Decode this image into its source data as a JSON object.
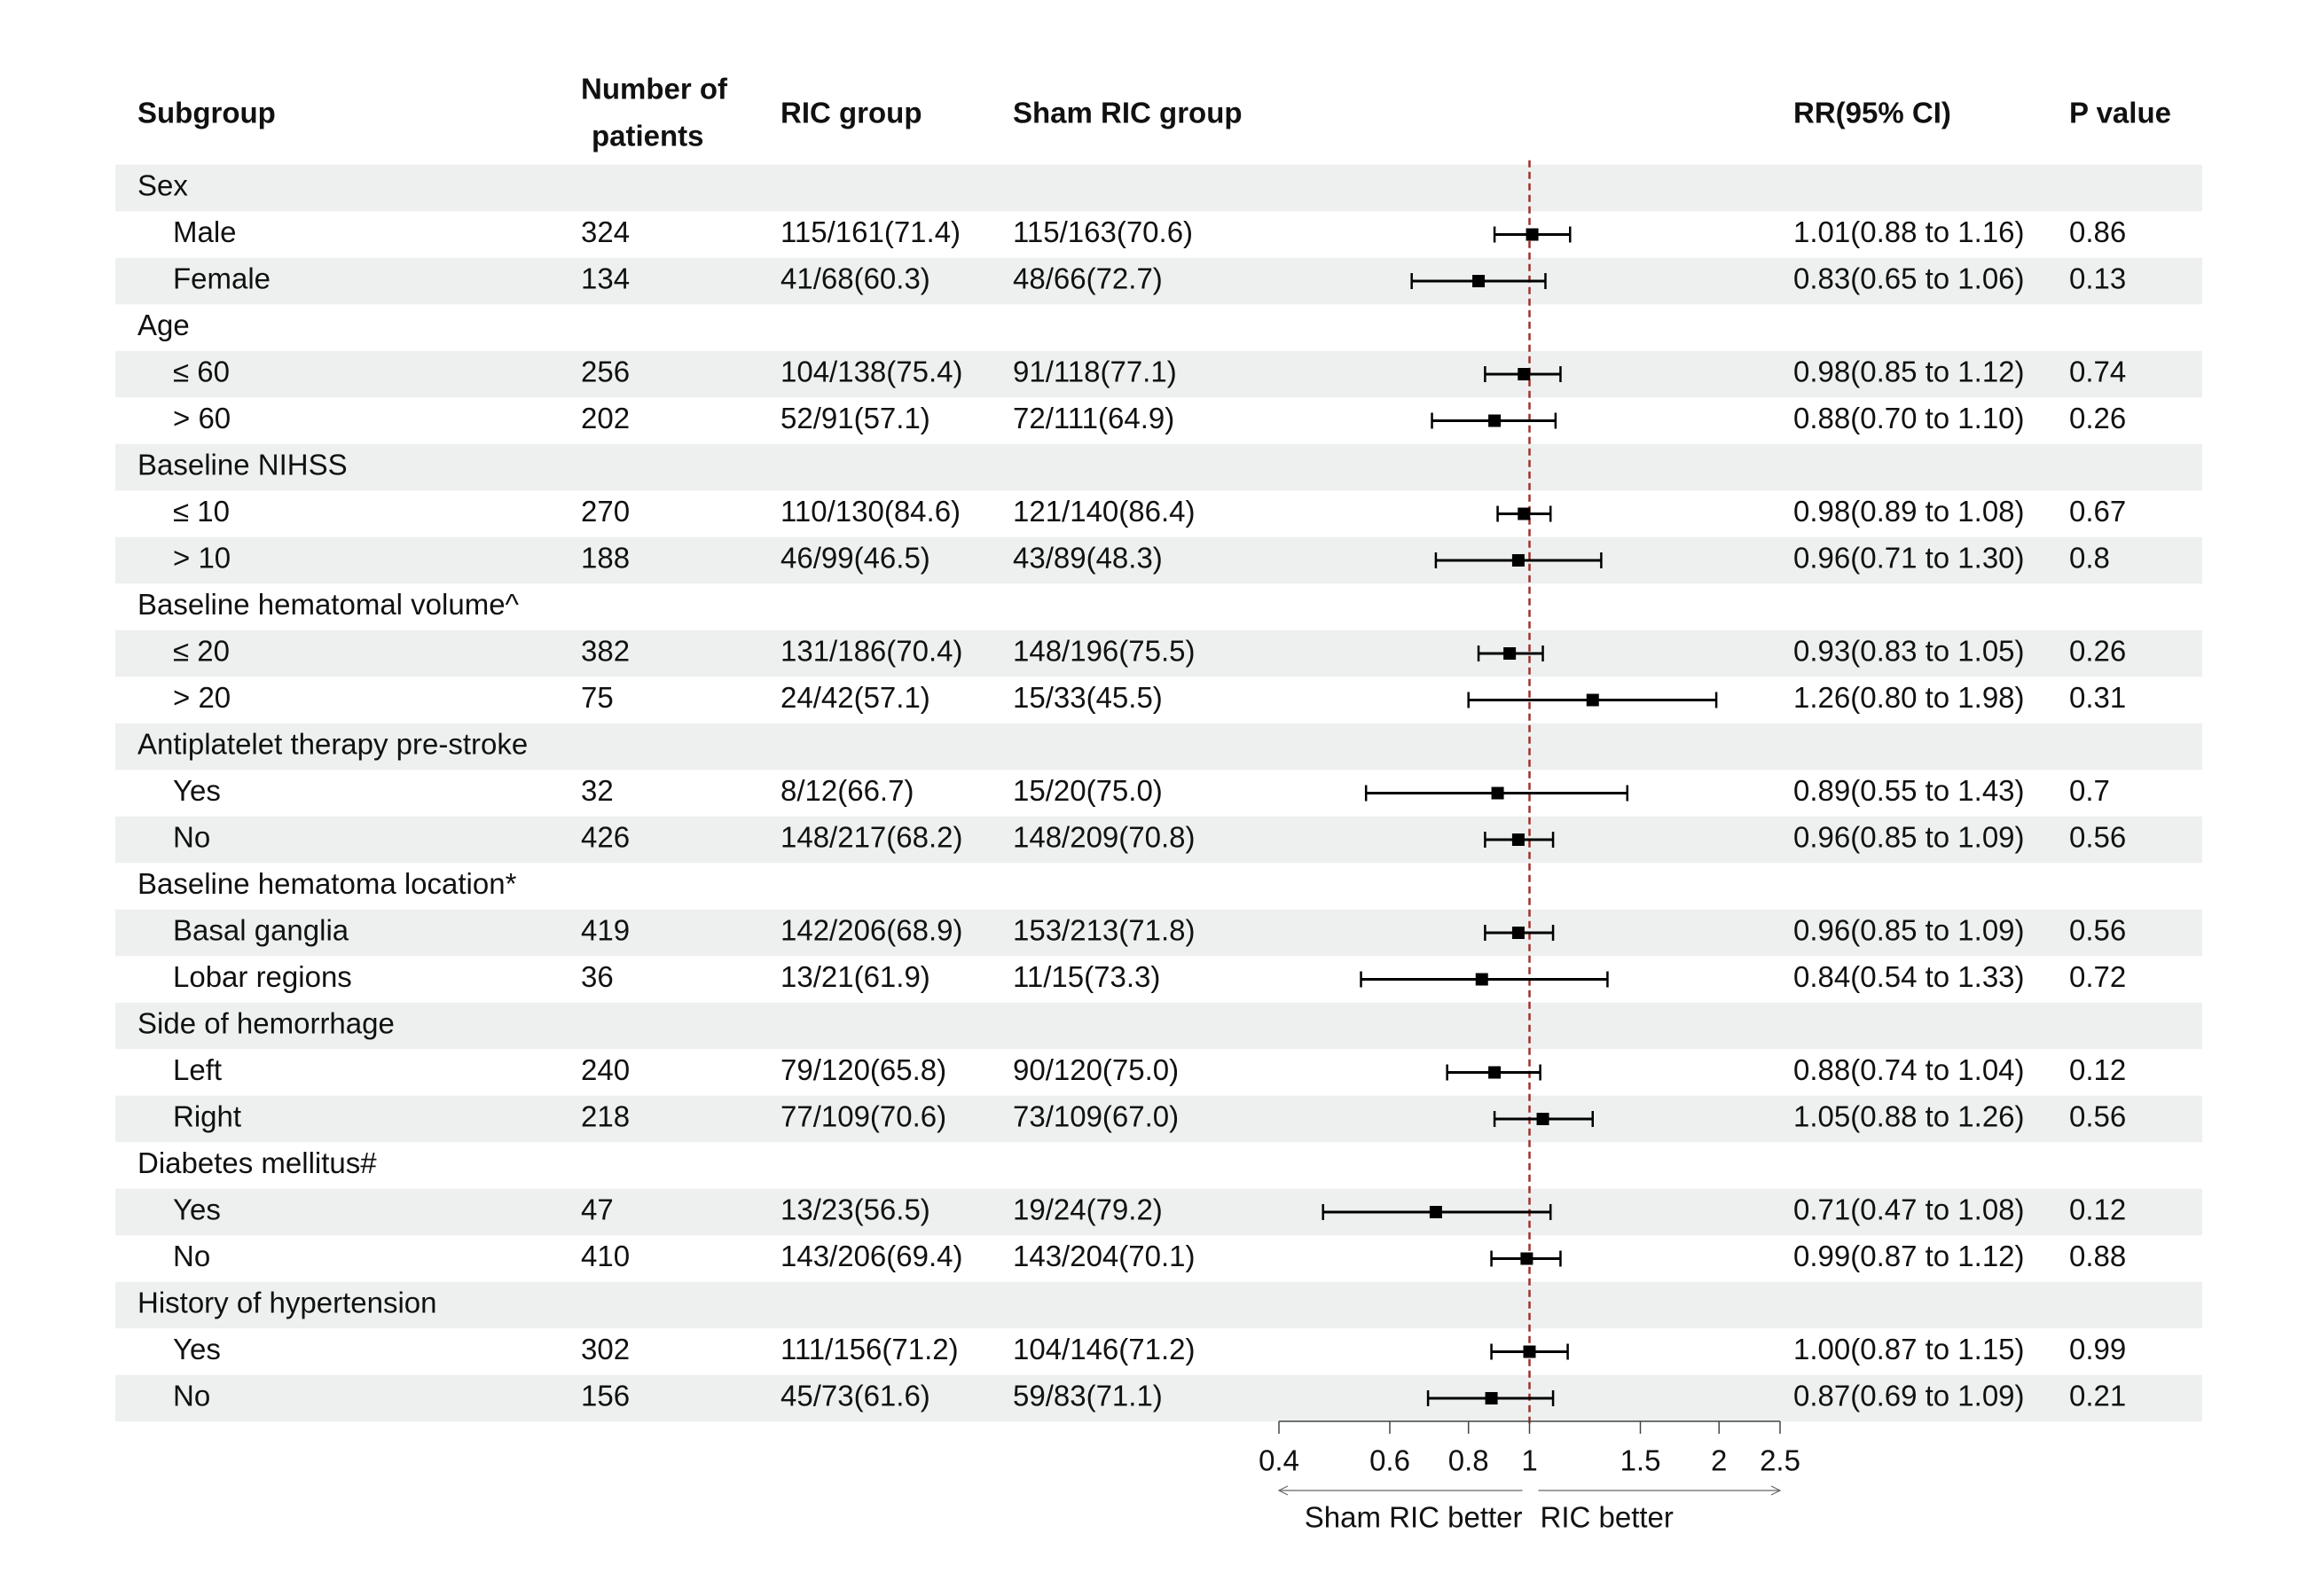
{
  "chart_data": {
    "type": "forest",
    "headers": {
      "subgroup": "Subgroup",
      "n": [
        "Number of",
        "patients"
      ],
      "ric": "RIC group",
      "sham": "Sham RIC group",
      "rr": "RR(95% CI)",
      "p": "P value"
    },
    "rows": [
      {
        "label": "Sex"
      },
      {
        "label": "Male",
        "n": 324,
        "ric": "115/161(71.4)",
        "sham": "115/163(70.6)",
        "rr": 1.01,
        "lower": 0.88,
        "upper": 1.16,
        "rr_label": "1.01(0.88 to 1.16)",
        "p": 0.86
      },
      {
        "label": "Female",
        "n": 134,
        "ric": "41/68(60.3)",
        "sham": "48/66(72.7)",
        "rr": 0.83,
        "lower": 0.65,
        "upper": 1.06,
        "rr_label": "0.83(0.65 to 1.06)",
        "p": 0.13
      },
      {
        "label": "Age"
      },
      {
        "label": "≤ 60",
        "n": 256,
        "ric": "104/138(75.4)",
        "sham": "91/118(77.1)",
        "rr": 0.98,
        "lower": 0.85,
        "upper": 1.12,
        "rr_label": "0.98(0.85 to 1.12)",
        "p": 0.74
      },
      {
        "label": "> 60",
        "n": 202,
        "ric": "52/91(57.1)",
        "sham": "72/111(64.9)",
        "rr": 0.88,
        "lower": 0.7,
        "upper": 1.1,
        "rr_label": "0.88(0.70 to 1.10)",
        "p": 0.26
      },
      {
        "label": "Baseline NIHSS"
      },
      {
        "label": "≤ 10",
        "n": 270,
        "ric": "110/130(84.6)",
        "sham": "121/140(86.4)",
        "rr": 0.98,
        "lower": 0.89,
        "upper": 1.08,
        "rr_label": "0.98(0.89 to 1.08)",
        "p": 0.67
      },
      {
        "label": "> 10",
        "n": 188,
        "ric": "46/99(46.5)",
        "sham": "43/89(48.3)",
        "rr": 0.96,
        "lower": 0.71,
        "upper": 1.3,
        "rr_label": "0.96(0.71 to 1.30)",
        "p": 0.8
      },
      {
        "label": "Baseline hematomal volume^"
      },
      {
        "label": "≤ 20",
        "n": 382,
        "ric": "131/186(70.4)",
        "sham": "148/196(75.5)",
        "rr": 0.93,
        "lower": 0.83,
        "upper": 1.05,
        "rr_label": "0.93(0.83 to 1.05)",
        "p": 0.26
      },
      {
        "label": "> 20",
        "n": 75,
        "ric": "24/42(57.1)",
        "sham": "15/33(45.5)",
        "rr": 1.26,
        "lower": 0.8,
        "upper": 1.98,
        "rr_label": "1.26(0.80 to 1.98)",
        "p": 0.31
      },
      {
        "label": "Antiplatelet therapy pre-stroke"
      },
      {
        "label": "Yes",
        "n": 32,
        "ric": "8/12(66.7)",
        "sham": "15/20(75.0)",
        "rr": 0.89,
        "lower": 0.55,
        "upper": 1.43,
        "rr_label": "0.89(0.55 to 1.43)",
        "p": 0.7
      },
      {
        "label": "No",
        "n": 426,
        "ric": "148/217(68.2)",
        "sham": "148/209(70.8)",
        "rr": 0.96,
        "lower": 0.85,
        "upper": 1.09,
        "rr_label": "0.96(0.85 to 1.09)",
        "p": 0.56
      },
      {
        "label": "Baseline hematoma location*"
      },
      {
        "label": "Basal ganglia",
        "n": 419,
        "ric": "142/206(68.9)",
        "sham": "153/213(71.8)",
        "rr": 0.96,
        "lower": 0.85,
        "upper": 1.09,
        "rr_label": "0.96(0.85 to 1.09)",
        "p": 0.56
      },
      {
        "label": "Lobar regions",
        "n": 36,
        "ric": "13/21(61.9)",
        "sham": "11/15(73.3)",
        "rr": 0.84,
        "lower": 0.54,
        "upper": 1.33,
        "rr_label": "0.84(0.54 to 1.33)",
        "p": 0.72
      },
      {
        "label": "Side of hemorrhage"
      },
      {
        "label": "Left",
        "n": 240,
        "ric": "79/120(65.8)",
        "sham": "90/120(75.0)",
        "rr": 0.88,
        "lower": 0.74,
        "upper": 1.04,
        "rr_label": "0.88(0.74 to 1.04)",
        "p": 0.12
      },
      {
        "label": "Right",
        "n": 218,
        "ric": "77/109(70.6)",
        "sham": "73/109(67.0)",
        "rr": 1.05,
        "lower": 0.88,
        "upper": 1.26,
        "rr_label": "1.05(0.88 to 1.26)",
        "p": 0.56
      },
      {
        "label": "Diabetes mellitus#"
      },
      {
        "label": "Yes",
        "n": 47,
        "ric": "13/23(56.5)",
        "sham": "19/24(79.2)",
        "rr": 0.71,
        "lower": 0.47,
        "upper": 1.08,
        "rr_label": "0.71(0.47 to 1.08)",
        "p": 0.12
      },
      {
        "label": "No",
        "n": 410,
        "ric": "143/206(69.4)",
        "sham": "143/204(70.1)",
        "rr": 0.99,
        "lower": 0.87,
        "upper": 1.12,
        "rr_label": "0.99(0.87 to 1.12)",
        "p": 0.88
      },
      {
        "label": "History of hypertension"
      },
      {
        "label": "Yes",
        "n": 302,
        "ric": "111/156(71.2)",
        "sham": "104/146(71.2)",
        "rr": 1.0,
        "lower": 0.87,
        "upper": 1.15,
        "rr_label": "1.00(0.87 to 1.15)",
        "p": 0.99
      },
      {
        "label": "No",
        "n": 156,
        "ric": "45/73(61.6)",
        "sham": "59/83(71.1)",
        "rr": 0.87,
        "lower": 0.69,
        "upper": 1.09,
        "rr_label": "0.87(0.69 to 1.09)",
        "p": 0.21
      }
    ],
    "xlim": [
      0.4,
      2.5
    ],
    "xticks": [
      0.4,
      0.6,
      0.8,
      1,
      1.5,
      2,
      2.5
    ],
    "log_x": true,
    "reference": 1,
    "reference_color": "#a0302a",
    "marker_color": "#000000",
    "band_color": "#eef0f0",
    "left_label": "Sham RIC better",
    "right_label": "RIC better"
  }
}
